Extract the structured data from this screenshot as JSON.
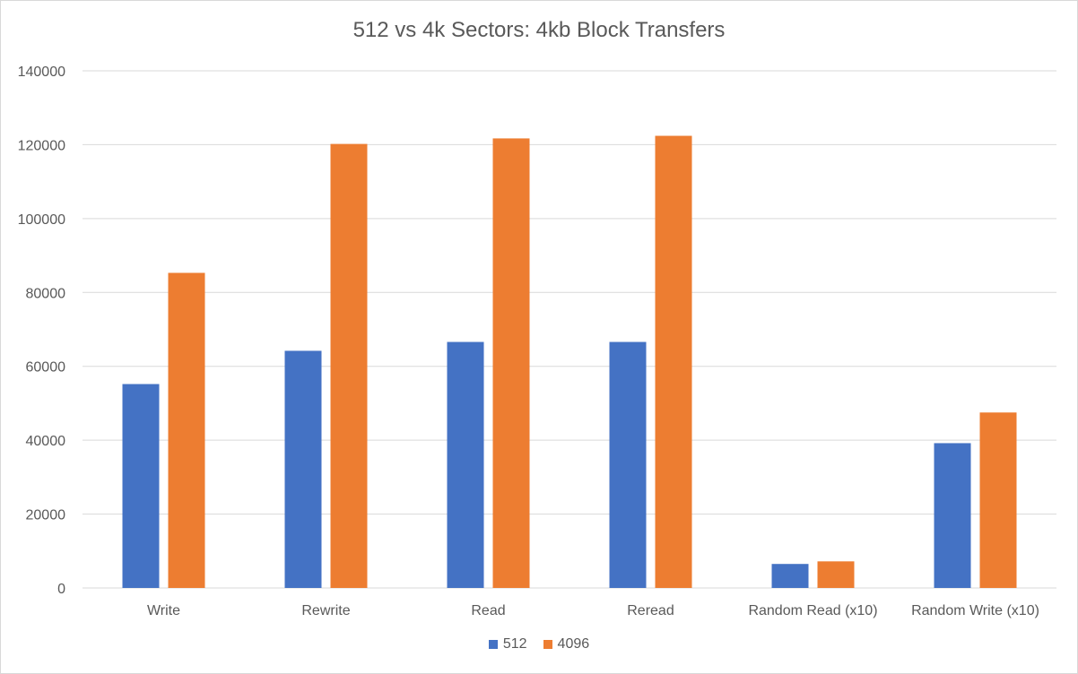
{
  "chart_data": {
    "type": "bar",
    "title": "512 vs 4k Sectors: 4kb Block Transfers",
    "categories": [
      "Write",
      "Rewrite",
      "Read",
      "Reread",
      "Random Read (x10)",
      "Random Write (x10)"
    ],
    "series": [
      {
        "name": "512",
        "color": "#4472C4",
        "values": [
          55200,
          64200,
          66600,
          66600,
          6500,
          39200
        ]
      },
      {
        "name": "4096",
        "color": "#ED7D31",
        "values": [
          85300,
          120200,
          121700,
          122400,
          7200,
          47500
        ]
      }
    ],
    "ylim": [
      0,
      140000
    ],
    "yticks": [
      0,
      20000,
      40000,
      60000,
      80000,
      100000,
      120000,
      140000
    ],
    "grid": true,
    "legend": "bottom"
  }
}
